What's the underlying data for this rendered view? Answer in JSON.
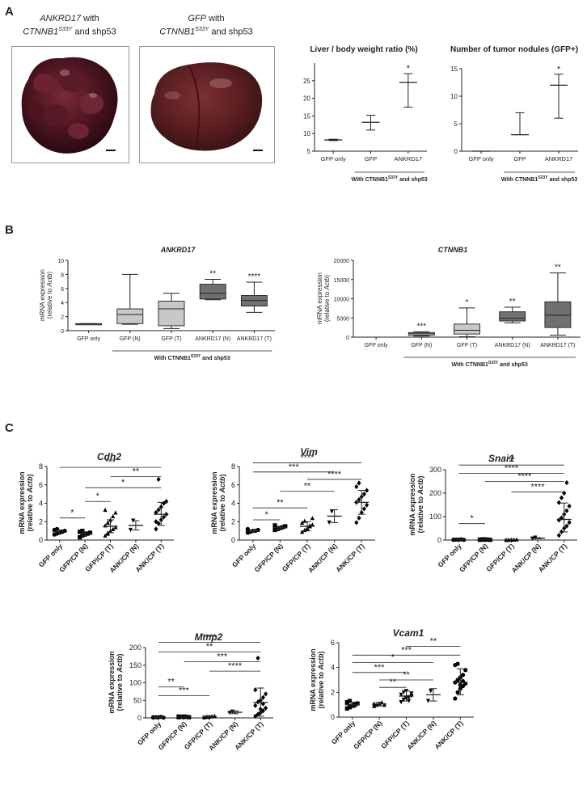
{
  "panels": {
    "a": "A",
    "b": "B",
    "c": "C"
  },
  "photos": [
    {
      "gene": "ANKRD17",
      "line1": " with",
      "line2a": "CTNNB1",
      "line2sup": "S33Y",
      "line2b": " and shp53"
    },
    {
      "gene": "GFP",
      "line1": " with",
      "line2a": "CTNNB1",
      "line2sup": "S33Y",
      "line2b": " and shp53"
    }
  ],
  "group_label": {
    "prefix": "With CTNNB1",
    "sup": "S33Y",
    "suffix": " and shp53"
  },
  "ylabel_mrna_line1": "mRNA expression",
  "ylabel_mrna_line2a": "(relative to ",
  "ylabel_mrna_gene": "Actb",
  "ylabel_mrna_line2b": ")",
  "colors": {
    "box_light": "#c8c8c8",
    "box_dark": "#707070",
    "marker": "#000000"
  },
  "chart_data": [
    {
      "id": "liver_ratio",
      "type": "line",
      "title": "Liver / body weight ratio (%)",
      "categories": [
        "GFP only",
        "GFP",
        "ANKRD17"
      ],
      "ylim": [
        5,
        30
      ],
      "yticks": [
        5,
        10,
        15,
        20,
        25
      ],
      "mean": [
        8.2,
        13.2,
        24.5
      ],
      "err_low": [
        8.0,
        11.0,
        17.5
      ],
      "err_high": [
        8.4,
        15.2,
        27.0
      ],
      "sig": [
        "",
        "",
        "*"
      ],
      "grid": false
    },
    {
      "id": "tumor_nodules",
      "type": "line",
      "title": "Number of tumor nodules (GFP+)",
      "categories": [
        "GFP only",
        "GFP",
        "ANKRD17"
      ],
      "ylim": [
        0,
        15
      ],
      "yticks": [
        0,
        5,
        10,
        15
      ],
      "mean": [
        0,
        3,
        12
      ],
      "err_low": [
        0,
        3,
        6
      ],
      "err_high": [
        0,
        7,
        14
      ],
      "sig": [
        "",
        "",
        "*"
      ],
      "grid": false
    },
    {
      "id": "ankrd17_box",
      "type": "box",
      "title": "ANKRD17",
      "categories": [
        "GFP only",
        "GFP (N)",
        "GFP (T)",
        "ANKRD17 (N)",
        "ANKRD17 (T)"
      ],
      "ylim": [
        0,
        10
      ],
      "yticks": [
        0,
        2,
        4,
        6,
        8,
        10
      ],
      "min": [
        0.9,
        0.9,
        0.3,
        4.4,
        2.6
      ],
      "q1": [
        0.9,
        1.0,
        0.7,
        4.5,
        3.5
      ],
      "median": [
        0.95,
        2.3,
        3.1,
        5.3,
        4.3
      ],
      "q3": [
        1.0,
        3.1,
        4.2,
        6.6,
        5.0
      ],
      "max": [
        1.0,
        8.0,
        5.3,
        7.3,
        6.9
      ],
      "sig": [
        "",
        "",
        "",
        "**",
        "****"
      ]
    },
    {
      "id": "ctnnb1_box",
      "type": "box",
      "title": "CTNNB1",
      "categories": [
        "GFP only",
        "GFP (N)",
        "GFP (T)",
        "ANKRD17 (N)",
        "ANKRD17 (T)"
      ],
      "ylim": [
        0,
        20000
      ],
      "yticks": [
        0,
        5000,
        10000,
        15000,
        20000
      ],
      "min": [
        0,
        300,
        100,
        3700,
        500
      ],
      "q1": [
        0,
        500,
        800,
        4200,
        2500
      ],
      "median": [
        0,
        900,
        1800,
        4900,
        5700
      ],
      "q3": [
        0,
        1200,
        3400,
        6600,
        9200
      ],
      "max": [
        0,
        1400,
        7600,
        7800,
        16700
      ],
      "sig": [
        "",
        "***",
        "*",
        "**",
        "**"
      ]
    },
    {
      "id": "cdh2",
      "type": "scatter",
      "title": "Cdh2",
      "categories": [
        "GFP only",
        "GFP/CP (N)",
        "GFP/CP (T)",
        "ANK/CP (N)",
        "ANK/CP (T)"
      ],
      "ylim": [
        0,
        8
      ],
      "yticks": [
        0,
        2,
        4,
        6,
        8
      ],
      "points": [
        [
          0.6,
          0.7,
          0.8,
          0.9,
          1.0,
          1.1,
          1.2
        ],
        [
          0.3,
          0.5,
          0.6,
          0.7,
          0.8,
          0.9,
          1.0
        ],
        [
          0.5,
          0.8,
          1.0,
          1.2,
          1.4,
          1.6,
          1.9,
          2.2,
          2.6,
          3.0,
          3.3,
          0.7
        ],
        [
          1.1,
          2.1
        ],
        [
          1.2,
          1.8,
          2.2,
          2.5,
          2.8,
          3.0,
          3.3,
          3.6,
          4.0,
          4.2,
          2.0,
          6.6
        ]
      ],
      "mean": [
        0.9,
        0.7,
        1.5,
        1.6,
        2.8
      ],
      "sd_low": [
        0.7,
        0.5,
        0.8,
        1.1,
        1.6
      ],
      "sd_high": [
        1.1,
        0.9,
        2.2,
        2.1,
        4.1
      ],
      "markers": [
        "circle",
        "square",
        "triangle-up",
        "triangle-down",
        "diamond"
      ],
      "comparisons": [
        {
          "from": 0,
          "to": 4,
          "y": 7.9,
          "label": "***"
        },
        {
          "from": 2,
          "to": 4,
          "y": 6.9,
          "label": "**"
        },
        {
          "from": 1,
          "to": 4,
          "y": 5.7,
          "label": "*"
        },
        {
          "from": 1,
          "to": 2,
          "y": 4.2,
          "label": "*"
        },
        {
          "from": 0,
          "to": 1,
          "y": 2.4,
          "label": "*"
        }
      ]
    },
    {
      "id": "vim",
      "type": "scatter",
      "title": "Vim",
      "categories": [
        "GFP only",
        "GFP/CP (N)",
        "GFP/CP (T)",
        "ANK/CP (N)",
        "ANK/CP (T)"
      ],
      "ylim": [
        0,
        8
      ],
      "yticks": [
        0,
        2,
        4,
        6,
        8
      ],
      "points": [
        [
          0.8,
          0.9,
          1.0,
          1.0,
          1.1,
          1.2
        ],
        [
          1.1,
          1.2,
          1.3,
          1.4,
          1.5,
          1.6
        ],
        [
          0.9,
          1.1,
          1.3,
          1.5,
          1.7,
          1.9,
          2.1,
          1.2,
          1.6,
          2.4
        ],
        [
          1.9,
          3.1
        ],
        [
          1.9,
          2.4,
          3.0,
          3.4,
          3.8,
          4.1,
          4.4,
          4.7,
          5.0,
          5.4,
          5.8,
          6.2
        ]
      ],
      "mean": [
        1.0,
        1.35,
        1.5,
        2.6,
        4.1
      ],
      "sd_low": [
        0.9,
        1.2,
        1.0,
        1.9,
        2.8
      ],
      "sd_high": [
        1.1,
        1.5,
        2.0,
        3.3,
        5.4
      ],
      "markers": [
        "circle",
        "square",
        "triangle-up",
        "triangle-down",
        "diamond"
      ],
      "comparisons": [
        {
          "from": 0,
          "to": 4,
          "y": 8.4,
          "label": "****"
        },
        {
          "from": 0,
          "to": 3,
          "y": 7.4,
          "label": "***"
        },
        {
          "from": 2,
          "to": 4,
          "y": 6.6,
          "label": "****"
        },
        {
          "from": 1,
          "to": 3,
          "y": 5.3,
          "label": "**"
        },
        {
          "from": 0,
          "to": 2,
          "y": 3.5,
          "label": "**"
        },
        {
          "from": 0,
          "to": 1,
          "y": 2.2,
          "label": "*"
        }
      ]
    },
    {
      "id": "snai1",
      "type": "scatter",
      "title": "Snai1",
      "categories": [
        "GFP only",
        "GFP/CP (N)",
        "GFP/CP (T)",
        "ANK/CP (N)",
        "ANK/CP (T)"
      ],
      "ylim": [
        0,
        300
      ],
      "yticks": [
        0,
        100,
        200,
        300
      ],
      "points": [
        [
          1,
          2,
          2,
          3,
          1,
          2
        ],
        [
          1,
          2,
          3,
          2,
          1,
          2,
          3
        ],
        [
          1,
          1,
          2,
          2,
          3,
          1,
          2,
          2
        ],
        [
          6,
          10
        ],
        [
          20,
          35,
          50,
          60,
          75,
          85,
          95,
          110,
          125,
          145,
          160,
          180,
          200,
          245
        ]
      ],
      "mean": [
        2,
        2,
        2,
        8,
        88
      ],
      "sd_low": [
        1,
        1,
        1,
        6,
        35
      ],
      "sd_high": [
        3,
        3,
        3,
        10,
        158
      ],
      "markers": [
        "circle",
        "square",
        "triangle-up",
        "triangle-down",
        "diamond"
      ],
      "comparisons": [
        {
          "from": 0,
          "to": 4,
          "y": 320,
          "label": "**"
        },
        {
          "from": 0,
          "to": 4,
          "y": 285,
          "label": "****"
        },
        {
          "from": 1,
          "to": 4,
          "y": 250,
          "label": "****"
        },
        {
          "from": 2,
          "to": 4,
          "y": 205,
          "label": "****"
        },
        {
          "from": 0,
          "to": 1,
          "y": 70,
          "label": "*"
        }
      ]
    },
    {
      "id": "mmp2",
      "type": "scatter",
      "title": "Mmp2",
      "categories": [
        "GFP only",
        "GFP/CP (N)",
        "GFP/CP (T)",
        "ANK/CP (N)",
        "ANK/CP (T)"
      ],
      "ylim": [
        0,
        200
      ],
      "yticks": [
        0,
        50,
        100,
        150,
        200
      ],
      "points": [
        [
          1,
          2,
          2,
          3,
          1,
          2
        ],
        [
          2,
          3,
          4,
          3,
          2,
          4
        ],
        [
          2,
          3,
          4,
          5,
          6,
          3,
          4
        ],
        [
          14,
          18
        ],
        [
          5,
          10,
          15,
          20,
          28,
          35,
          45,
          50,
          58,
          68,
          80,
          170,
          25,
          40
        ]
      ],
      "mean": [
        2,
        3,
        4,
        16,
        44
      ],
      "sd_low": [
        1,
        2,
        2,
        12,
        5
      ],
      "sd_high": [
        3,
        4,
        6,
        20,
        85
      ],
      "markers": [
        "circle",
        "square",
        "triangle-up",
        "triangle-down",
        "diamond"
      ],
      "comparisons": [
        {
          "from": 0,
          "to": 4,
          "y": 215,
          "label": "****"
        },
        {
          "from": 0,
          "to": 4,
          "y": 188,
          "label": "**"
        },
        {
          "from": 1,
          "to": 4,
          "y": 160,
          "label": "***"
        },
        {
          "from": 2,
          "to": 4,
          "y": 133,
          "label": "****"
        },
        {
          "from": 0,
          "to": 1,
          "y": 88,
          "label": "**"
        },
        {
          "from": 0,
          "to": 2,
          "y": 63,
          "label": "***"
        }
      ]
    },
    {
      "id": "vcam1",
      "type": "scatter",
      "title": "Vcam1",
      "categories": [
        "GFP only",
        "GFP/CP (N)",
        "GFP/CP (T)",
        "ANK/CP (N)",
        "ANK/CP (T)"
      ],
      "ylim": [
        0,
        6
      ],
      "yticks": [
        0,
        2,
        4,
        6
      ],
      "points": [
        [
          0.7,
          0.8,
          0.9,
          1.0,
          1.1,
          1.2,
          1.3
        ],
        [
          0.9,
          1.0,
          1.1,
          1.2,
          1.0,
          1.1
        ],
        [
          1.2,
          1.4,
          1.5,
          1.6,
          1.7,
          1.8,
          2.0,
          2.1,
          1.3,
          1.9
        ],
        [
          1.3,
          2.1
        ],
        [
          1.5,
          2.0,
          2.3,
          2.5,
          2.7,
          2.8,
          3.0,
          3.2,
          3.4,
          3.8,
          4.2,
          4.3,
          2.6,
          2.9
        ]
      ],
      "mean": [
        1.0,
        1.05,
        1.7,
        1.8,
        2.8
      ],
      "sd_low": [
        0.8,
        0.9,
        1.3,
        1.3,
        1.8
      ],
      "sd_high": [
        1.2,
        1.2,
        2.1,
        2.3,
        3.9
      ],
      "markers": [
        "square",
        "triangle-up",
        "triangle-down",
        "triangle-down",
        "circle"
      ],
      "comparisons": [
        {
          "from": 2,
          "to": 4,
          "y": 5.7,
          "label": "**"
        },
        {
          "from": 0,
          "to": 4,
          "y": 5.0,
          "label": "***"
        },
        {
          "from": 0,
          "to": 3,
          "y": 4.4,
          "label": "*"
        },
        {
          "from": 0,
          "to": 2,
          "y": 3.6,
          "label": "***"
        },
        {
          "from": 1,
          "to": 3,
          "y": 3.0,
          "label": "**"
        },
        {
          "from": 1,
          "to": 2,
          "y": 2.4,
          "label": "**"
        }
      ]
    }
  ]
}
